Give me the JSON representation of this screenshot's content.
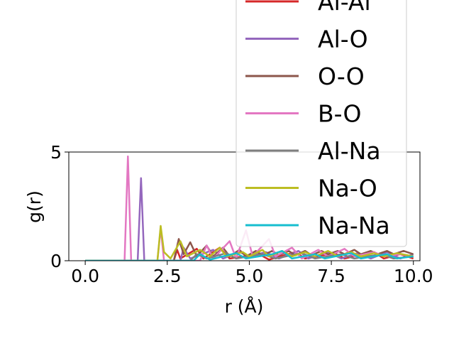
{
  "chart_data": {
    "type": "line",
    "title": "",
    "xlabel": "r (Å)",
    "ylabel": "g(r)",
    "xlim": [
      -0.5,
      10.2
    ],
    "ylim": [
      0,
      5
    ],
    "x_ticks": [
      {
        "value": 0.0,
        "label": "0.0"
      },
      {
        "value": 2.5,
        "label": "2.5"
      },
      {
        "value": 5.0,
        "label": "5.0"
      },
      {
        "value": 7.5,
        "label": "7.5"
      },
      {
        "value": 10.0,
        "label": "10.0"
      }
    ],
    "y_ticks": [
      {
        "value": 0,
        "label": "0"
      },
      {
        "value": 5,
        "label": "5"
      }
    ],
    "legend_position": "upper right, extending above the axes",
    "grid": false,
    "series": [
      {
        "name": "Al-Al",
        "color": "#d62728",
        "points": [
          [
            0,
            0
          ],
          [
            2.7,
            0
          ],
          [
            2.8,
            0.5
          ],
          [
            2.9,
            0.1
          ],
          [
            3.4,
            0.55
          ],
          [
            3.6,
            0.1
          ],
          [
            4.1,
            0.6
          ],
          [
            4.4,
            0.1
          ],
          [
            5.3,
            0.3
          ],
          [
            5.6,
            0.05
          ],
          [
            6.4,
            0.4
          ],
          [
            6.7,
            0.1
          ],
          [
            7.6,
            0.35
          ],
          [
            7.9,
            0.1
          ],
          [
            8.8,
            0.4
          ],
          [
            9.1,
            0.1
          ],
          [
            9.6,
            0.3
          ],
          [
            10,
            0.1
          ]
        ]
      },
      {
        "name": "Al-O",
        "color": "#9467bd",
        "points": [
          [
            0,
            0
          ],
          [
            1.6,
            0
          ],
          [
            1.7,
            3.8
          ],
          [
            1.8,
            0
          ],
          [
            2.9,
            0
          ],
          [
            3.0,
            0.6
          ],
          [
            3.2,
            0.1
          ],
          [
            3.9,
            0.5
          ],
          [
            4.2,
            0.1
          ],
          [
            4.7,
            0.4
          ],
          [
            5.0,
            0.2
          ],
          [
            5.5,
            0.4
          ],
          [
            5.9,
            0.1
          ],
          [
            6.5,
            0.45
          ],
          [
            6.8,
            0.1
          ],
          [
            7.4,
            0.4
          ],
          [
            7.8,
            0.1
          ],
          [
            8.3,
            0.35
          ],
          [
            8.7,
            0.1
          ],
          [
            9.2,
            0.4
          ],
          [
            9.6,
            0.1
          ],
          [
            10,
            0.3
          ]
        ]
      },
      {
        "name": "O-O",
        "color": "#8c564b",
        "points": [
          [
            0,
            0
          ],
          [
            2.7,
            0
          ],
          [
            2.85,
            1.0
          ],
          [
            3.0,
            0.3
          ],
          [
            3.2,
            0.85
          ],
          [
            3.4,
            0.2
          ],
          [
            3.7,
            0.7
          ],
          [
            3.9,
            0.2
          ],
          [
            4.2,
            0.6
          ],
          [
            4.4,
            0.2
          ],
          [
            4.7,
            0.5
          ],
          [
            4.9,
            0.2
          ],
          [
            5.2,
            0.45
          ],
          [
            5.4,
            0.25
          ],
          [
            5.7,
            0.45
          ],
          [
            5.9,
            0.25
          ],
          [
            6.2,
            0.45
          ],
          [
            6.4,
            0.25
          ],
          [
            6.7,
            0.45
          ],
          [
            6.9,
            0.25
          ],
          [
            7.2,
            0.45
          ],
          [
            7.4,
            0.3
          ],
          [
            7.7,
            0.45
          ],
          [
            7.9,
            0.3
          ],
          [
            8.2,
            0.5
          ],
          [
            8.4,
            0.3
          ],
          [
            8.7,
            0.45
          ],
          [
            8.9,
            0.3
          ],
          [
            9.2,
            0.45
          ],
          [
            9.4,
            0.3
          ],
          [
            9.7,
            0.45
          ],
          [
            10,
            0.3
          ]
        ]
      },
      {
        "name": "B-O",
        "color": "#e377c2",
        "points": [
          [
            0,
            0
          ],
          [
            1.2,
            0
          ],
          [
            1.3,
            4.8
          ],
          [
            1.4,
            0
          ],
          [
            2.2,
            0
          ],
          [
            2.3,
            1.5
          ],
          [
            2.4,
            0
          ],
          [
            3.5,
            0
          ],
          [
            3.7,
            0.7
          ],
          [
            3.9,
            0.1
          ],
          [
            4.4,
            0.9
          ],
          [
            4.6,
            0.1
          ],
          [
            4.9,
            1.4
          ],
          [
            5.1,
            0.2
          ],
          [
            5.6,
            1.0
          ],
          [
            5.8,
            0.2
          ],
          [
            6.3,
            0.6
          ],
          [
            6.6,
            0.1
          ],
          [
            7.1,
            0.5
          ],
          [
            7.4,
            0.2
          ],
          [
            7.9,
            0.55
          ],
          [
            8.2,
            0.2
          ],
          [
            8.8,
            0.4
          ],
          [
            9.1,
            0.2
          ],
          [
            9.6,
            0.3
          ],
          [
            10,
            0.2
          ]
        ]
      },
      {
        "name": "Al-Na",
        "color": "#7f7f7f",
        "points": [
          [
            0,
            0
          ],
          [
            3.2,
            0
          ],
          [
            3.4,
            0.3
          ],
          [
            3.7,
            0.1
          ],
          [
            4.3,
            0.35
          ],
          [
            4.6,
            0.1
          ],
          [
            5.4,
            0.3
          ],
          [
            5.8,
            0.1
          ],
          [
            6.6,
            0.35
          ],
          [
            7.0,
            0.1
          ],
          [
            7.8,
            0.3
          ],
          [
            8.2,
            0.1
          ],
          [
            9.0,
            0.3
          ],
          [
            9.4,
            0.1
          ],
          [
            10,
            0.2
          ]
        ]
      },
      {
        "name": "Na-O",
        "color": "#bcbd22",
        "points": [
          [
            0,
            0
          ],
          [
            2.2,
            0
          ],
          [
            2.3,
            1.6
          ],
          [
            2.4,
            0.4
          ],
          [
            2.6,
            0.1
          ],
          [
            2.9,
            0.9
          ],
          [
            3.1,
            0.2
          ],
          [
            3.5,
            0.5
          ],
          [
            3.8,
            0.2
          ],
          [
            4.1,
            0.6
          ],
          [
            4.3,
            0.2
          ],
          [
            4.8,
            0.4
          ],
          [
            5.0,
            0.2
          ],
          [
            5.4,
            0.5
          ],
          [
            5.6,
            0.2
          ],
          [
            6.0,
            0.45
          ],
          [
            6.3,
            0.2
          ],
          [
            6.7,
            0.4
          ],
          [
            7.0,
            0.2
          ],
          [
            7.4,
            0.45
          ],
          [
            7.7,
            0.2
          ],
          [
            8.1,
            0.4
          ],
          [
            8.4,
            0.2
          ],
          [
            8.8,
            0.35
          ],
          [
            9.1,
            0.2
          ],
          [
            9.5,
            0.35
          ],
          [
            10,
            0.2
          ]
        ]
      },
      {
        "name": "Na-Na",
        "color": "#17becf",
        "points": [
          [
            0,
            0
          ],
          [
            3.3,
            0
          ],
          [
            3.5,
            0.3
          ],
          [
            3.8,
            0.05
          ],
          [
            4.6,
            0.35
          ],
          [
            4.9,
            0.1
          ],
          [
            5.7,
            0.3
          ],
          [
            6.0,
            0.45
          ],
          [
            6.3,
            0.1
          ],
          [
            7.0,
            0.3
          ],
          [
            7.3,
            0.1
          ],
          [
            8.1,
            0.35
          ],
          [
            8.4,
            0.1
          ],
          [
            9.2,
            0.3
          ],
          [
            9.5,
            0.1
          ],
          [
            10,
            0.2
          ]
        ]
      }
    ]
  }
}
